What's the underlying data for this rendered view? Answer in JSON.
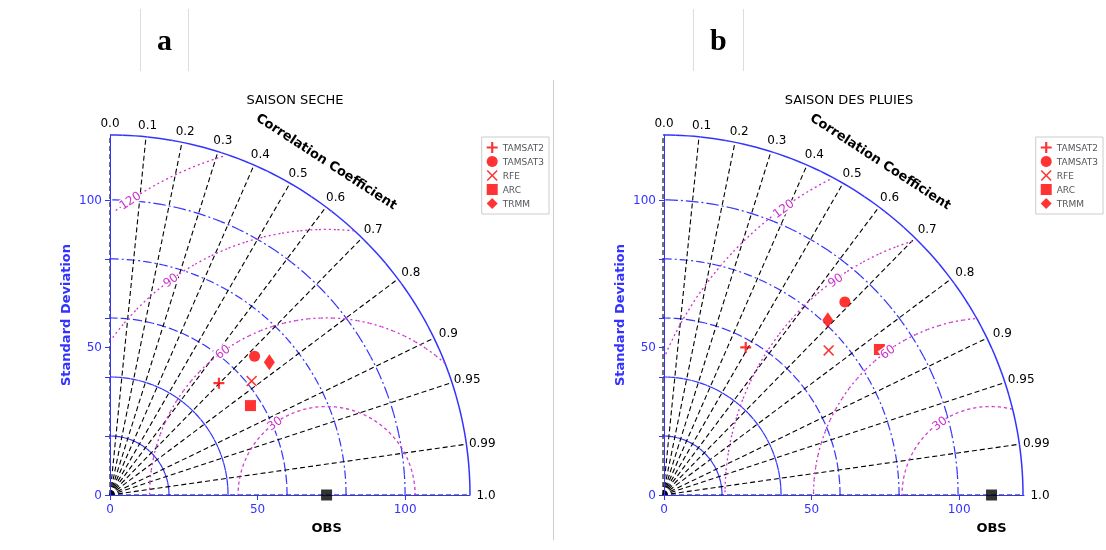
{
  "chart_data": [
    {
      "type": "scatter",
      "title": "SAISON SECHE",
      "xlabel": "OBS",
      "ylabel": "Standard Deviation",
      "xlim": [
        0,
        122
      ],
      "ylim": [
        0,
        122
      ],
      "xticks": [
        0,
        50,
        100
      ],
      "yticks": [
        0,
        {
          "value": 20,
          "label": null
        },
        {
          "value": 40,
          "label": null
        },
        50,
        {
          "value": 60,
          "label": null
        },
        {
          "value": 80,
          "label": null
        },
        100
      ],
      "legend": "top right",
      "series": [
        {
          "name": "TAMSAT2",
          "color": "#ff0000",
          "marker": "plus",
          "x": [
            36.9
          ],
          "values": [
            37.9
          ]
        },
        {
          "name": "TAMSAT3",
          "color": "#ff0000",
          "marker": "circle",
          "x": [
            49
          ],
          "values": [
            47
          ]
        },
        {
          "name": "RFE",
          "color": "#ff0000",
          "marker": "cross",
          "x": [
            48
          ],
          "values": [
            38.6
          ]
        },
        {
          "name": "ARC",
          "color": "#ff0000",
          "marker": "square",
          "x": [
            47.6
          ],
          "values": [
            30.3
          ]
        },
        {
          "name": "TRMM",
          "color": "#ff0000",
          "marker": "diamond",
          "x": [
            54
          ],
          "values": [
            45
          ]
        },
        {
          "color": "#000000",
          "marker": "square",
          "x": [
            73.4
          ],
          "values": [
            0
          ]
        }
      ],
      "annotations": [
        "a",
        "Correlation Coefficient",
        "0.0",
        "0.1",
        "0.2",
        "0.3",
        "0.4",
        "0.5",
        "0.6",
        "0.7",
        "0.8",
        "0.9",
        "0.95",
        "0.99",
        "1.0",
        "30",
        "60",
        "90",
        "120"
      ]
    },
    {
      "type": "scatter",
      "title": "SAISON DES PLUIES",
      "xlabel": "OBS",
      "ylabel": "Standard Deviation",
      "xlim": [
        0,
        122
      ],
      "ylim": [
        0,
        122
      ],
      "xticks": [
        0,
        50,
        100
      ],
      "yticks": [
        0,
        {
          "value": 20,
          "label": null
        },
        {
          "value": 40,
          "label": null
        },
        50,
        {
          "value": 60,
          "label": null
        },
        {
          "value": 80,
          "label": null
        },
        100
      ],
      "legend": "top right",
      "series": [
        {
          "name": "TAMSAT2",
          "color": "#ff0000",
          "marker": "plus",
          "x": [
            27.7
          ],
          "values": [
            50
          ]
        },
        {
          "name": "TAMSAT3",
          "color": "#ff0000",
          "marker": "circle",
          "x": [
            61.3
          ],
          "values": [
            65.4
          ]
        },
        {
          "name": "RFE",
          "color": "#ff0000",
          "marker": "cross",
          "x": [
            55.8
          ],
          "values": [
            49
          ]
        },
        {
          "name": "ARC",
          "color": "#ff0000",
          "marker": "square",
          "x": [
            73
          ],
          "values": [
            49.3
          ]
        },
        {
          "name": "TRMM",
          "color": "#ff0000",
          "marker": "diamond",
          "x": [
            55.5
          ],
          "values": [
            59.2
          ]
        },
        {
          "color": "#000000",
          "marker": "square",
          "x": [
            111
          ],
          "values": [
            0
          ]
        }
      ],
      "annotations": [
        "b",
        "Correlation Coefficient",
        "0.0",
        "0.1",
        "0.2",
        "0.3",
        "0.4",
        "0.5",
        "0.6",
        "0.7",
        "0.8",
        "0.9",
        "0.95",
        "0.99",
        "1.0",
        "30",
        "60",
        "90",
        "120"
      ]
    }
  ]
}
